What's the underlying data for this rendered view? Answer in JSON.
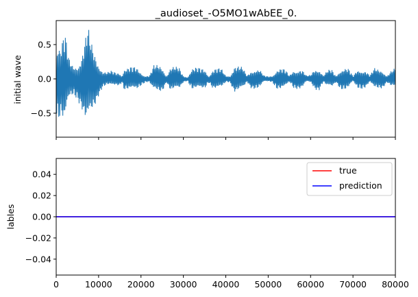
{
  "chart_data": [
    {
      "type": "line",
      "title": "_audioset_-O5MO1wAbEE_0.",
      "ylabel": "initial wave",
      "xlabel": "",
      "xlim": [
        0,
        80000
      ],
      "ylim": [
        -0.85,
        0.85
      ],
      "y_ticks": [
        0.5,
        0.0,
        -0.5
      ],
      "y_tick_labels": [
        "0.5",
        "0.0",
        "−0.5"
      ],
      "x_ticks": [
        0,
        10000,
        20000,
        30000,
        40000,
        50000,
        60000,
        70000,
        80000
      ],
      "x_tick_labels_visible": false,
      "grid": false,
      "series": [
        {
          "color": "#1f77b4",
          "style": "audio waveform envelope (approximate peak amplitude)",
          "x": [
            0,
            500,
            1000,
            2000,
            3000,
            4000,
            5000,
            6000,
            7000,
            7500,
            8000,
            9000,
            10000,
            11000,
            12000,
            13000,
            14000,
            15000,
            15500,
            16000,
            17000,
            18000,
            19000,
            20000,
            21000,
            22000,
            23000,
            24000,
            25000,
            26000,
            27000,
            28000,
            29000,
            30000,
            31000,
            32000,
            33000,
            34000,
            35000,
            36000,
            37000,
            38000,
            39000,
            40000,
            41000,
            42000,
            43000,
            44000,
            45000,
            46000,
            47000,
            48000,
            49000,
            50000,
            51000,
            52000,
            53000,
            54000,
            55000,
            56000,
            57000,
            58000,
            59000,
            60000,
            61000,
            62000,
            63000,
            64000,
            65000,
            66000,
            67000,
            68000,
            69000,
            70000,
            71000,
            72000,
            73000,
            74000,
            75000,
            76000,
            77000,
            78000,
            79000,
            80000
          ],
          "upper": [
            0.55,
            0.6,
            0.5,
            0.72,
            0.3,
            0.2,
            0.22,
            0.35,
            0.65,
            0.78,
            0.6,
            0.4,
            0.25,
            0.12,
            0.1,
            0.12,
            0.1,
            0.1,
            0.05,
            0.16,
            0.17,
            0.18,
            0.17,
            0.1,
            0.05,
            0.05,
            0.2,
            0.21,
            0.19,
            0.05,
            0.18,
            0.18,
            0.17,
            0.05,
            0.03,
            0.16,
            0.17,
            0.16,
            0.15,
            0.05,
            0.15,
            0.16,
            0.15,
            0.05,
            0.05,
            0.2,
            0.19,
            0.17,
            0.05,
            0.14,
            0.15,
            0.14,
            0.05,
            0.04,
            0.05,
            0.15,
            0.16,
            0.14,
            0.05,
            0.14,
            0.15,
            0.14,
            0.05,
            0.06,
            0.16,
            0.17,
            0.05,
            0.13,
            0.14,
            0.05,
            0.15,
            0.17,
            0.15,
            0.04,
            0.14,
            0.15,
            0.13,
            0.05,
            0.16,
            0.15,
            0.14,
            0.05,
            0.12,
            0.16
          ],
          "lower": [
            -0.5,
            -0.65,
            -0.55,
            -0.75,
            -0.35,
            -0.25,
            -0.3,
            -0.45,
            -0.72,
            -0.75,
            -0.65,
            -0.45,
            -0.25,
            -0.12,
            -0.1,
            -0.12,
            -0.1,
            -0.1,
            -0.05,
            -0.16,
            -0.17,
            -0.18,
            -0.17,
            -0.1,
            -0.05,
            -0.05,
            -0.2,
            -0.21,
            -0.19,
            -0.05,
            -0.18,
            -0.18,
            -0.17,
            -0.05,
            -0.03,
            -0.16,
            -0.17,
            -0.16,
            -0.15,
            -0.05,
            -0.15,
            -0.16,
            -0.15,
            -0.05,
            -0.05,
            -0.2,
            -0.19,
            -0.17,
            -0.05,
            -0.14,
            -0.15,
            -0.14,
            -0.05,
            -0.04,
            -0.05,
            -0.15,
            -0.16,
            -0.14,
            -0.05,
            -0.14,
            -0.15,
            -0.14,
            -0.05,
            -0.06,
            -0.16,
            -0.17,
            -0.05,
            -0.13,
            -0.14,
            -0.05,
            -0.15,
            -0.17,
            -0.15,
            -0.04,
            -0.14,
            -0.15,
            -0.13,
            -0.05,
            -0.16,
            -0.15,
            -0.14,
            -0.05,
            -0.12,
            -0.16
          ]
        }
      ]
    },
    {
      "type": "line",
      "title": "",
      "ylabel": "lables",
      "xlabel": "",
      "xlim": [
        0,
        80000
      ],
      "ylim": [
        -0.055,
        0.055
      ],
      "y_ticks": [
        0.04,
        0.02,
        0.0,
        -0.02,
        -0.04
      ],
      "y_tick_labels": [
        "0.04",
        "0.02",
        "0.00",
        "−0.02",
        "−0.04"
      ],
      "x_ticks": [
        0,
        10000,
        20000,
        30000,
        40000,
        50000,
        60000,
        70000,
        80000
      ],
      "x_tick_labels": [
        "0",
        "10000",
        "20000",
        "30000",
        "40000",
        "50000",
        "60000",
        "70000",
        "80000"
      ],
      "grid": false,
      "legend_position": "top-right",
      "series": [
        {
          "name": "true",
          "color": "#ff0000",
          "x": [
            0,
            80000
          ],
          "y": [
            0,
            0
          ]
        },
        {
          "name": "prediction",
          "color": "#0000ff",
          "x": [
            0,
            80000
          ],
          "y": [
            0,
            0
          ]
        }
      ]
    }
  ]
}
